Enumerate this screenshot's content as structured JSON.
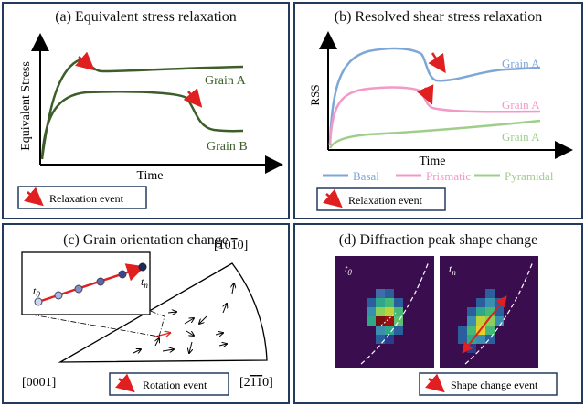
{
  "panel_a": {
    "title": "(a) Equivalent stress relaxation",
    "ylabel": "Equivalent Stress",
    "xlabel": "Time",
    "curve_labels": [
      "Grain A",
      "Grain B"
    ],
    "legend": "Relaxation event",
    "colors": {
      "curve": "#3d5e2a",
      "arrow": "#e02020",
      "axis": "#000000"
    }
  },
  "panel_b": {
    "title": "(b) Resolved shear stress relaxation",
    "ylabel": "RSS",
    "xlabel": "Time",
    "curve_labels": [
      "Grain A",
      "Grain A",
      "Grain A"
    ],
    "series": [
      "Basal",
      "Prismatic",
      "Pyramidal"
    ],
    "legend": "Relaxation event",
    "colors": {
      "basal": "#7ea6d6",
      "prismatic": "#f19ac6",
      "pyramidal": "#9fce8b",
      "arrow": "#e02020"
    }
  },
  "panel_c": {
    "title": "(c) Grain orientation change",
    "t0": "t",
    "t0_sub": "0",
    "tn": "t",
    "tn_sub": "n",
    "corner_top": "[10",
    "corner_top_bar": "1",
    "corner_top_end": "0]",
    "corner_left": "[0001]",
    "corner_right_a": "[2",
    "corner_right_b": "1",
    "corner_right_c": "1",
    "corner_right_d": "0]",
    "legend": "Rotation event"
  },
  "panel_d": {
    "title": "(d) Diffraction peak shape change",
    "t0": "t",
    "t0_sub": "0",
    "tn": "t",
    "tn_sub": "n",
    "legend": "Shape change event",
    "colors": {
      "bg": "#3a0d4f"
    }
  }
}
